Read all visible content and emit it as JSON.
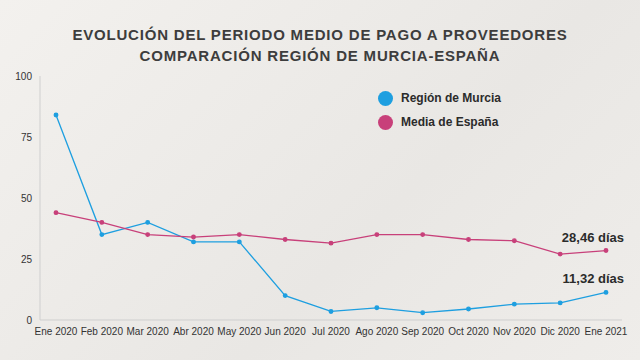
{
  "chart_data": {
    "type": "line",
    "title": "EVOLUCIÓN DEL PERIODO MEDIO DE PAGO A PROVEEDORES",
    "subtitle": "COMPARACIÓN REGIÓN DE MURCIA-ESPAÑA",
    "categories": [
      "Ene 2020",
      "Feb 2020",
      "Mar 2020",
      "Abr 2020",
      "May 2020",
      "Jun 2020",
      "Jul 2020",
      "Ago 2020",
      "Sep 2020",
      "Oct 2020",
      "Nov 2020",
      "Dic 2020",
      "Ene 2021"
    ],
    "series": [
      {
        "name": "Región de Murcia",
        "color": "#1e9fe0",
        "values": [
          84,
          35,
          40,
          32,
          32,
          10,
          3.5,
          5,
          3,
          4.5,
          6.5,
          7,
          11.32
        ]
      },
      {
        "name": "Media de España",
        "color": "#c8407a",
        "values": [
          44,
          40,
          35,
          34,
          35,
          33,
          31.5,
          35,
          35,
          33,
          32.5,
          27,
          28.46
        ]
      }
    ],
    "ylim": [
      0,
      100
    ],
    "yticks": [
      0,
      25,
      50,
      75,
      100
    ],
    "grid": false,
    "legend": "upper right",
    "marker": "circle",
    "annotations": [
      {
        "text": "28,46 días",
        "series": "Media de España",
        "category": "Ene 2021"
      },
      {
        "text": "11,32 días",
        "series": "Región de Murcia",
        "category": "Ene 2021"
      }
    ]
  }
}
